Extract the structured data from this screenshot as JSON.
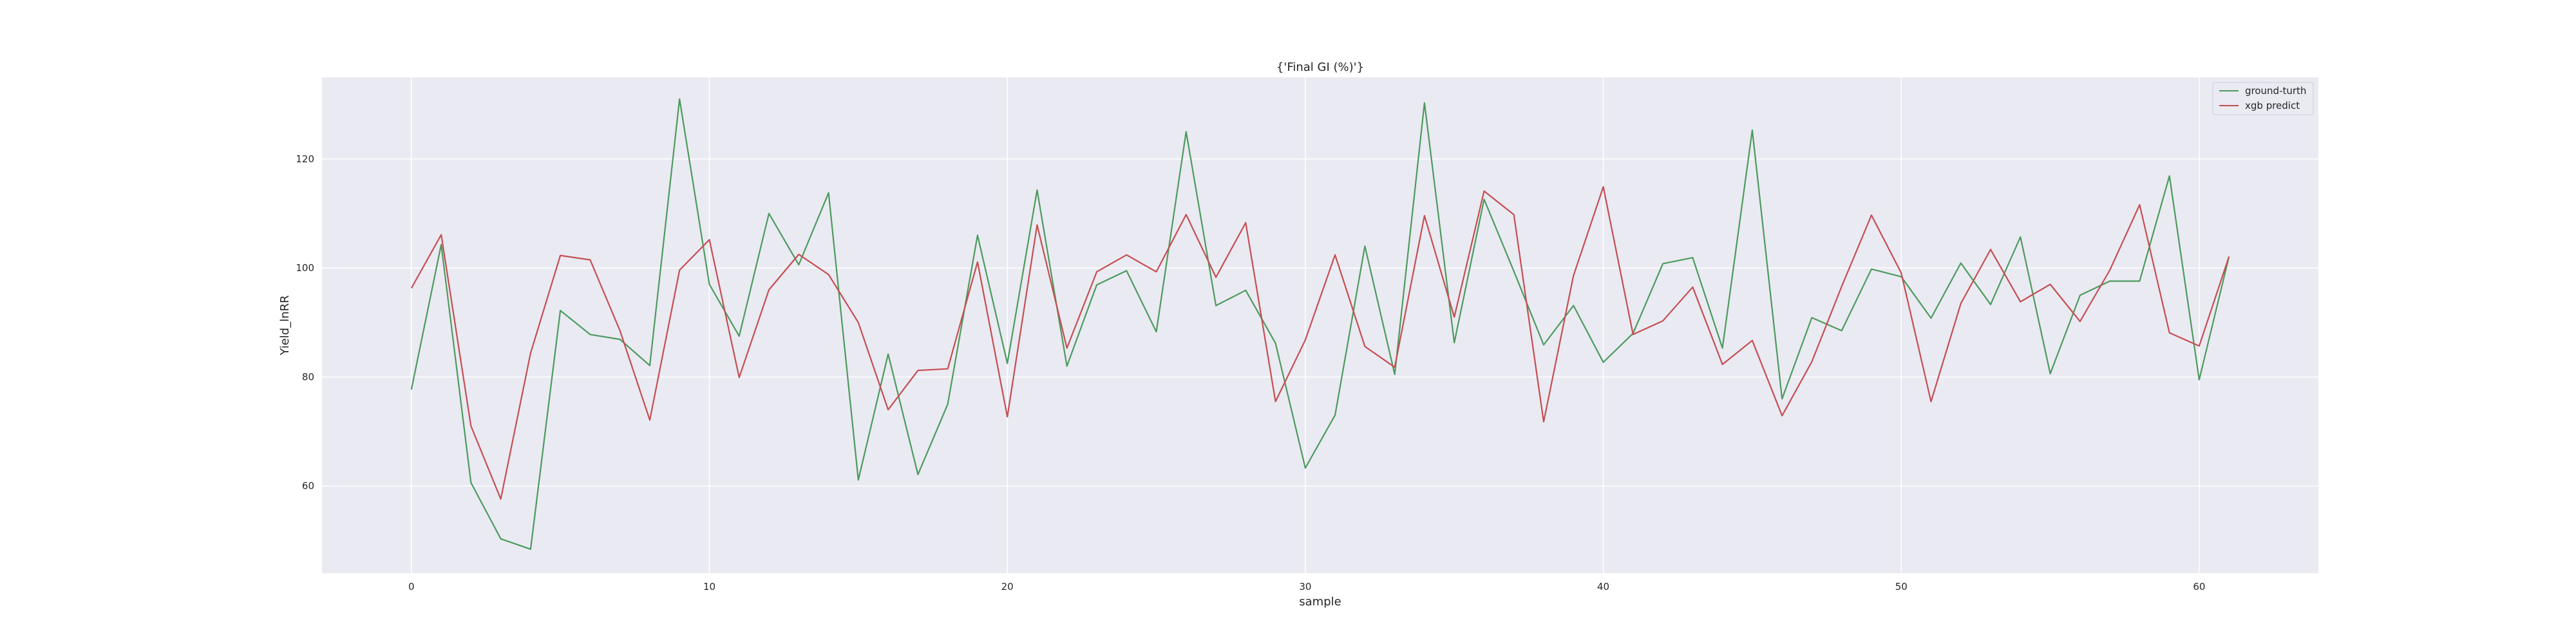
{
  "chart_data": {
    "type": "line",
    "title": "{'Final GI (%)'}",
    "xlabel": "sample",
    "ylabel": "Yield_lnRR",
    "xlim": [
      -3,
      64
    ],
    "ylim": [
      44,
      135
    ],
    "x_ticks": [
      0,
      10,
      20,
      30,
      40,
      50,
      60
    ],
    "y_ticks": [
      60,
      80,
      100,
      120
    ],
    "grid": true,
    "legend_position": "top-right",
    "series": [
      {
        "name": "ground-turth",
        "color": "#4c9a5e",
        "values": [
          77.7,
          104.3,
          60.6,
          50.3,
          48.4,
          92.2,
          87.8,
          86.9,
          82.1,
          131.0,
          97.0,
          87.5,
          110.0,
          100.6,
          113.8,
          61.1,
          84.2,
          62.1,
          75.0,
          106.0,
          82.5,
          114.3,
          82.0,
          96.9,
          99.5,
          88.3,
          125.0,
          93.1,
          95.9,
          86.2,
          63.3,
          73.0,
          104.0,
          80.5,
          130.3,
          86.3,
          112.6,
          99.4,
          85.9,
          93.1,
          82.7,
          88.0,
          100.8,
          101.9,
          85.3,
          125.3,
          76.0,
          90.9,
          88.5,
          99.8,
          98.4,
          90.8,
          100.9,
          93.3,
          105.7,
          80.6,
          95.0,
          97.6,
          97.6,
          116.9,
          79.5,
          102.1
        ]
      },
      {
        "name": "xgb predict",
        "color": "#c44e52",
        "values": [
          96.3,
          106.1,
          71.0,
          57.6,
          84.4,
          102.3,
          101.5,
          88.5,
          72.1,
          99.6,
          105.2,
          79.9,
          96.0,
          102.5,
          98.8,
          90.0,
          74.0,
          81.2,
          81.5,
          101.1,
          72.7,
          107.9,
          85.3,
          99.3,
          102.4,
          99.3,
          109.8,
          98.3,
          108.3,
          75.5,
          86.8,
          102.4,
          85.6,
          81.8,
          109.6,
          91.0,
          114.1,
          109.8,
          71.8,
          98.6,
          114.9,
          87.8,
          90.3,
          96.5,
          82.3,
          86.7,
          72.9,
          82.8,
          96.6,
          109.7,
          99.1,
          75.5,
          93.5,
          103.4,
          93.8,
          97.0,
          90.2,
          99.6,
          111.6,
          88.1,
          85.7,
          102.1
        ]
      }
    ]
  },
  "colors": {
    "plot_background": "#eaeaf2",
    "grid": "#ffffff",
    "text": "#262626"
  }
}
